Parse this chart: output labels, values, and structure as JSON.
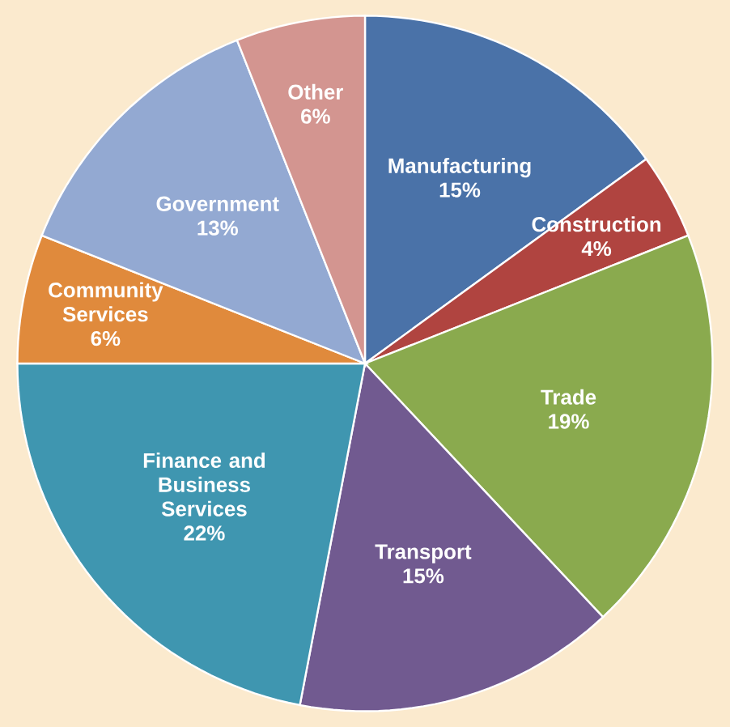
{
  "chart_data": {
    "type": "pie",
    "categories": [
      "Manufacturing",
      "Construction",
      "Trade",
      "Transport",
      "Finance and Business Services",
      "Community Services",
      "Government",
      "Other"
    ],
    "values": [
      15,
      4,
      19,
      15,
      22,
      6,
      13,
      6
    ],
    "value_labels": [
      "15%",
      "4%",
      "19%",
      "15%",
      "22%",
      "6%",
      "13%",
      "6%"
    ],
    "colors": [
      "#4a72a8",
      "#b04440",
      "#8aaa4e",
      "#715a90",
      "#3f96b0",
      "#e08a3c",
      "#93a9d2",
      "#d39590"
    ]
  }
}
